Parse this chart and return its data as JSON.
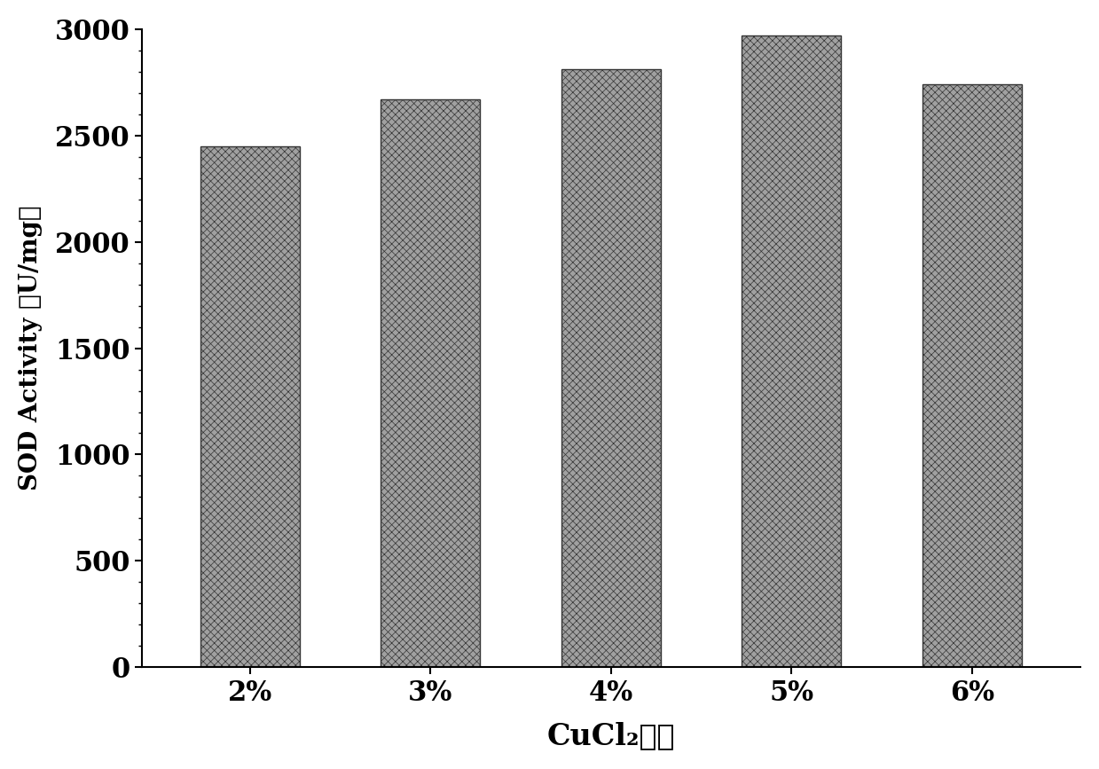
{
  "categories": [
    "2%",
    "3%",
    "4%",
    "5%",
    "6%"
  ],
  "values": [
    2450,
    2670,
    2810,
    2970,
    2740
  ],
  "bar_color": "#a0a0a0",
  "bar_hatch": "xxxx",
  "bar_width": 0.55,
  "xlabel": "CuCl₂浓度",
  "ylabel": "SOD Activity （U/mg）",
  "ylim": [
    0,
    3000
  ],
  "yticks": [
    0,
    500,
    1000,
    1500,
    2000,
    2500,
    3000
  ],
  "xlabel_fontsize": 24,
  "ylabel_fontsize": 20,
  "tick_fontsize": 22,
  "background_color": "#ffffff",
  "bar_edge_color": "#333333",
  "bar_edge_linewidth": 1.0,
  "hatch_color": "#333333"
}
